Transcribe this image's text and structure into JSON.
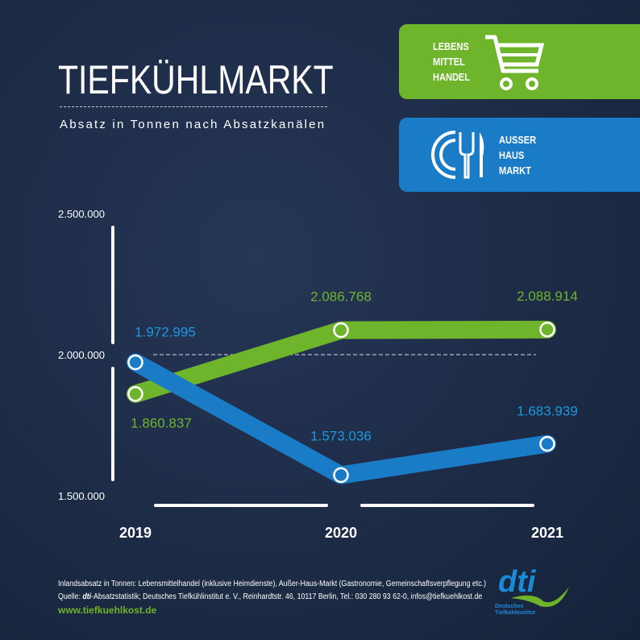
{
  "header": {
    "title": "TIEFKÜHLMARKT",
    "subtitle": "Absatz in Tonnen nach Absatzkanälen"
  },
  "legend": [
    {
      "lines": [
        "LEBENS",
        "MITTEL",
        "HANDEL"
      ],
      "icon": "shopping-cart-icon",
      "color": "#6fb52c"
    },
    {
      "lines": [
        "AUSSER",
        "HAUS",
        "MARKT"
      ],
      "icon": "plate-cutlery-icon",
      "color": "#1a7cc7"
    }
  ],
  "chart_data": {
    "type": "line",
    "categories": [
      "2019",
      "2020",
      "2021"
    ],
    "y_ticks": [
      "2.500.000",
      "2.000.000",
      "1.500.000"
    ],
    "ylim": [
      1500000,
      2500000
    ],
    "reference_line": 2000000,
    "series": [
      {
        "name": "LEBENSMITTELHANDEL",
        "color": "#6fb52c",
        "values": [
          1860837,
          2086768,
          2088914
        ],
        "labels": [
          "1.860.837",
          "2.086.768",
          "2.088.914"
        ]
      },
      {
        "name": "AUSSER HAUS MARKT",
        "color": "#1a7cc7",
        "values": [
          1972995,
          1573036,
          1683939
        ],
        "labels": [
          "1.972.995",
          "1.573.036",
          "1.683.939"
        ]
      }
    ]
  },
  "footer": {
    "line1": "Inlandsabsatz in Tonnen: Lebensmittelhandel (inklusive Heimdienste), Außer-Haus-Markt (Gastronomie, Gemeinschaftsverpflegung etc.)",
    "line2_prefix": "Quelle: ",
    "line2_brand": "dti",
    "line2_rest": "-Absatzstatistik; Deutsches Tiefkühlinstitut e. V., Reinhardtstr. 46, 10117 Berlin, Tel.: 030 280 93 62-0, infos@tiefkuehlkost.de",
    "website": "www.tiefkuehlkost.de"
  },
  "logo": {
    "text": "dti",
    "subtitle": [
      "Deutsches",
      "Tiefkühlinstitut"
    ]
  }
}
